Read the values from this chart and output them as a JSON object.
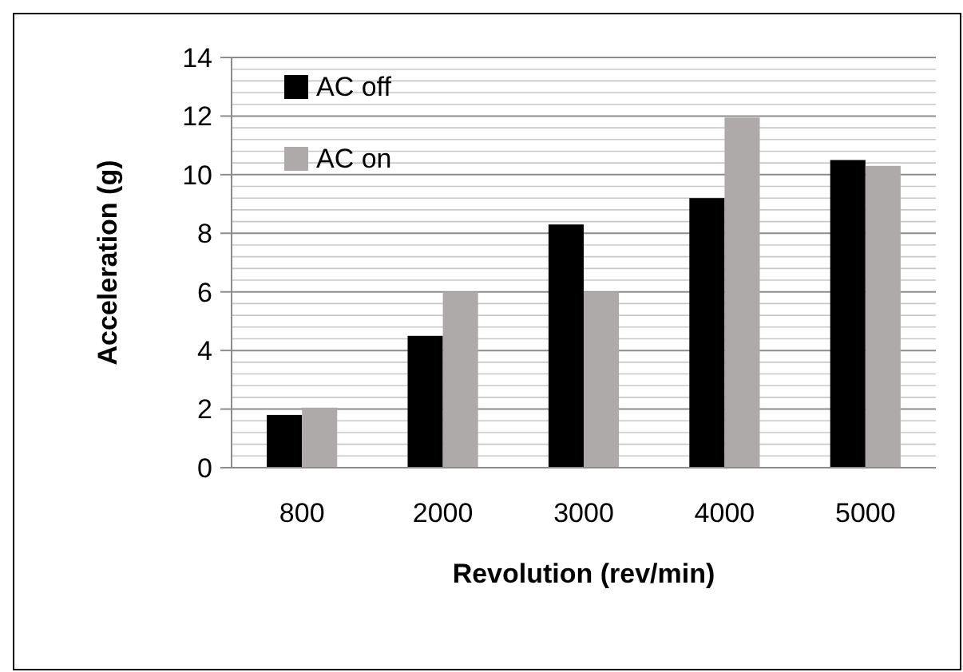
{
  "chart_data": {
    "type": "bar",
    "xlabel": "Revolution (rev/min)",
    "ylabel": "Acceleration (g)",
    "categories": [
      "800",
      "2000",
      "3000",
      "4000",
      "5000"
    ],
    "series": [
      {
        "name": "AC off",
        "color": "#000000",
        "values": [
          1.8,
          4.5,
          8.3,
          9.2,
          10.5
        ]
      },
      {
        "name": "AC on",
        "color": "#aeaaaa",
        "values": [
          2.05,
          6.0,
          6.0,
          11.95,
          10.3
        ]
      }
    ],
    "ylim": [
      0,
      14
    ],
    "yticks": [
      0,
      2,
      4,
      6,
      8,
      10,
      12,
      14
    ],
    "grid": "y",
    "legend": "top left"
  }
}
